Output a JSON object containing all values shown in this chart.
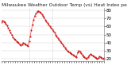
{
  "title": "Milwaukee Weather Outdoor Temp (vs) Heat Index per Minute (Last 24 Hours)",
  "background_color": "#ffffff",
  "line_color": "#cc0000",
  "grid_color": "#cccccc",
  "vline_color": "#aaaaaa",
  "ylim": [
    18,
    82
  ],
  "ytick_values": [
    20,
    30,
    40,
    50,
    60,
    70,
    80
  ],
  "ytick_labels": [
    "20",
    "30",
    "40",
    "50",
    "60",
    "70",
    "80"
  ],
  "vlines_x": [
    0.27,
    0.5
  ],
  "y_values": [
    65,
    67,
    66,
    65,
    63,
    61,
    58,
    55,
    52,
    50,
    47,
    45,
    44,
    42,
    41,
    40,
    38,
    37,
    38,
    40,
    39,
    38,
    37,
    36,
    42,
    48,
    55,
    62,
    68,
    73,
    76,
    78,
    79,
    78,
    77,
    75,
    73,
    71,
    68,
    66,
    64,
    62,
    60,
    58,
    56,
    54,
    52,
    50,
    48,
    46,
    44,
    42,
    40,
    38,
    36,
    34,
    32,
    30,
    29,
    28,
    27,
    26,
    25,
    24,
    23,
    22,
    28,
    30,
    29,
    27,
    25,
    23,
    22,
    21,
    20,
    22,
    24,
    26,
    25,
    24,
    23,
    22,
    21,
    20,
    21,
    23,
    22,
    21,
    20,
    21
  ],
  "title_fontsize": 4.2,
  "tick_fontsize": 4.0,
  "line_width": 0.7,
  "marker_size": 1.0
}
